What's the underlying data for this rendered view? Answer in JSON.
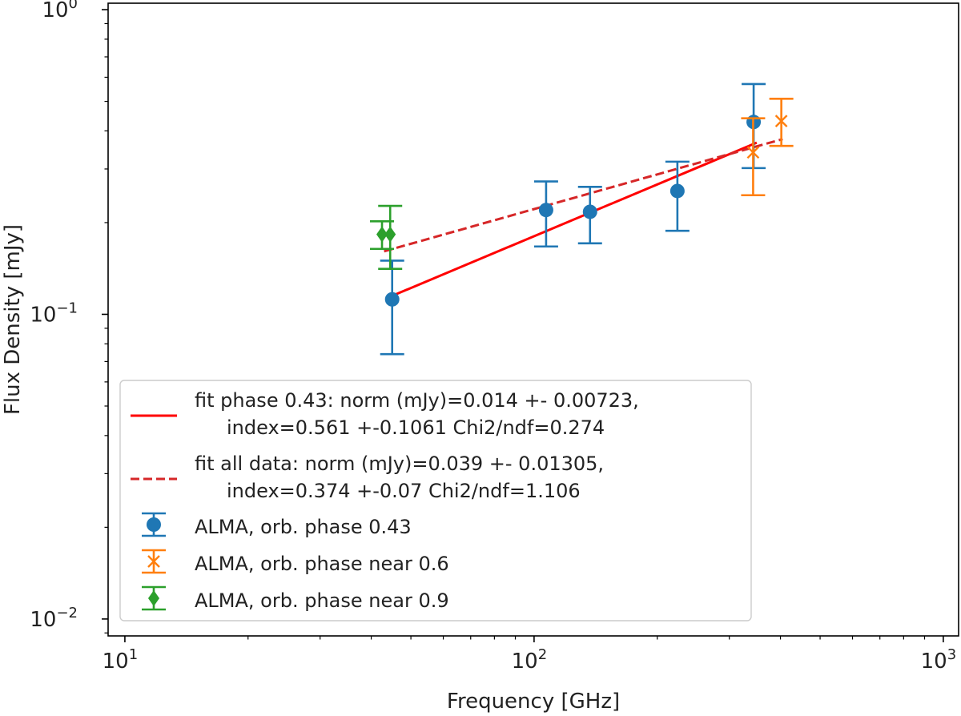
{
  "chart_data": {
    "type": "scatter",
    "title": "",
    "xlabel": "Frequency [GHz]",
    "ylabel": "Flux Density [mJy]",
    "xscale": "log",
    "yscale": "log",
    "xlim": [
      9.1,
      1090
    ],
    "ylim": [
      0.0088,
      1.05
    ],
    "x_ticks": [
      {
        "value": 10,
        "base": "10",
        "exp": "1"
      },
      {
        "value": 100,
        "base": "10",
        "exp": "2"
      },
      {
        "value": 1000,
        "base": "10",
        "exp": "3"
      }
    ],
    "y_ticks": [
      {
        "value": 0.01,
        "base": "10",
        "exp": "−2"
      },
      {
        "value": 0.1,
        "base": "10",
        "exp": "−1"
      },
      {
        "value": 1,
        "base": "10",
        "exp": "0"
      }
    ],
    "grid": false,
    "legend_position": "lower-left",
    "fits": [
      {
        "name": "fit phase 0.43: norm (mJy)=0.014 +- 0.00723,",
        "name_line2": "index=0.561 +-0.1061 Chi2/ndf=0.274",
        "style": "solid",
        "color": "#ff0000",
        "x": [
          45,
          350
        ],
        "y": [
          0.115,
          0.366
        ]
      },
      {
        "name": "fit all data: norm (mJy)=0.039 +- 0.01305,",
        "name_line2": "index=0.374 +-0.07 Chi2/ndf=1.106",
        "style": "dashed",
        "color": "#d62728",
        "x": [
          43,
          405
        ],
        "y": [
          0.161,
          0.376
        ]
      }
    ],
    "series": [
      {
        "name": "ALMA, orb. phase 0.43",
        "color": "#1f77b4",
        "marker": "circle",
        "points": [
          {
            "x": 45,
            "y": 0.112,
            "ylow": 0.074,
            "yhigh": 0.15
          },
          {
            "x": 107,
            "y": 0.22,
            "ylow": 0.167,
            "yhigh": 0.273
          },
          {
            "x": 137,
            "y": 0.217,
            "ylow": 0.171,
            "yhigh": 0.262
          },
          {
            "x": 224,
            "y": 0.254,
            "ylow": 0.188,
            "yhigh": 0.317
          },
          {
            "x": 344,
            "y": 0.428,
            "ylow": 0.302,
            "yhigh": 0.57
          }
        ]
      },
      {
        "name": "ALMA, orb. phase near 0.6",
        "color": "#ff7f0e",
        "marker": "x",
        "points": [
          {
            "x": 343,
            "y": 0.34,
            "ylow": 0.246,
            "yhigh": 0.44
          },
          {
            "x": 402,
            "y": 0.431,
            "ylow": 0.357,
            "yhigh": 0.51
          }
        ]
      },
      {
        "name": "ALMA, orb. phase near 0.9",
        "color": "#2ca02c",
        "marker": "diamond",
        "points": [
          {
            "x": 42.5,
            "y": 0.183,
            "ylow": 0.164,
            "yhigh": 0.202
          },
          {
            "x": 44.5,
            "y": 0.183,
            "ylow": 0.141,
            "yhigh": 0.227
          }
        ]
      }
    ]
  }
}
